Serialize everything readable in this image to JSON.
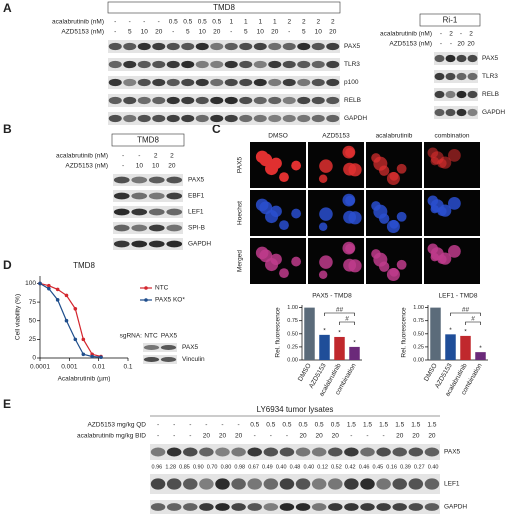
{
  "panel_a": {
    "label": "A",
    "tmd8": {
      "title": "TMD8",
      "rows": [
        {
          "label": "acalabrutinib (nM)",
          "values": [
            "-",
            "-",
            "-",
            "-",
            "0.5",
            "0.5",
            "0.5",
            "0.5",
            "1",
            "1",
            "1",
            "1",
            "2",
            "2",
            "2",
            "2"
          ]
        },
        {
          "label": "AZD5153 (nM)",
          "values": [
            "-",
            "5",
            "10",
            "20",
            "-",
            "5",
            "10",
            "20",
            "-",
            "5",
            "10",
            "20",
            "-",
            "5",
            "10",
            "20"
          ]
        }
      ],
      "proteins": [
        "PAX5",
        "TLR3",
        "p100",
        "RELB",
        "GAPDH"
      ]
    },
    "ri1": {
      "title": "Ri-1",
      "rows": [
        {
          "label": "acalabrutinib (nM)",
          "values": [
            "-",
            "2",
            "-",
            "2"
          ]
        },
        {
          "label": "AZD5153 (nM)",
          "values": [
            "-",
            "-",
            "20",
            "20"
          ]
        }
      ],
      "proteins": [
        "PAX5",
        "TLR3",
        "RELB",
        "GAPDH"
      ]
    }
  },
  "panel_b": {
    "label": "B",
    "title": "TMD8",
    "rows": [
      {
        "label": "acalabrutinib (nM)",
        "values": [
          "-",
          "-",
          "2",
          "2"
        ]
      },
      {
        "label": "AZD5153 (nM)",
        "values": [
          "-",
          "10",
          "10",
          "20"
        ]
      }
    ],
    "proteins": [
      "PAX5",
      "EBF1",
      "LEF1",
      "SPI-B",
      "GAPDH"
    ]
  },
  "panel_c": {
    "label": "C",
    "columns": [
      "DMSO",
      "AZD5153",
      "acalabrutinib",
      "combination"
    ],
    "rows": [
      "PAX5",
      "Hoechst",
      "Merged"
    ]
  },
  "panel_d": {
    "label": "D",
    "inset": {
      "prefix": "sgRNA:",
      "lanes": [
        "NTC",
        "PAX5"
      ],
      "proteins": [
        "PAX5",
        "Vinculin"
      ]
    }
  },
  "panel_e": {
    "label": "E",
    "title": "LY6934 tumor lysates",
    "rows": [
      {
        "label": "AZD5153 mg/kg QD",
        "values": [
          "-",
          "-",
          "-",
          "-",
          "-",
          "-",
          "0.5",
          "0.5",
          "0.5",
          "0.5",
          "0.5",
          "0.5",
          "1.5",
          "1.5",
          "1.5",
          "1.5",
          "1.5",
          "1.5"
        ]
      },
      {
        "label": "acalabrutinib mg/kg BID",
        "values": [
          "-",
          "-",
          "-",
          "20",
          "20",
          "20",
          "-",
          "-",
          "-",
          "20",
          "20",
          "20",
          "-",
          "-",
          "-",
          "20",
          "20",
          "20"
        ]
      }
    ],
    "quantification": [
      "0.96",
      "1.28",
      "0.85",
      "0.90",
      "0.70",
      "0.80",
      "0.98",
      "0.67",
      "0.49",
      "0.40",
      "0.48",
      "0.40",
      "0.12",
      "0.52",
      "0.42",
      "0.46",
      "0.45",
      "0.16",
      "0.39",
      "0.27",
      "0.40"
    ],
    "proteins": [
      "PAX5",
      "LEF1",
      "GAPDH"
    ]
  },
  "chart_data": [
    {
      "type": "line",
      "title": "TMD8",
      "xlabel": "Acalabrutinib (µm)",
      "ylabel": "Cell viability (%)",
      "log_x": true,
      "x": [
        0.0001,
        0.0002,
        0.0004,
        0.0008,
        0.0016,
        0.003,
        0.006,
        0.012
      ],
      "series": [
        {
          "name": "NTC",
          "color": "#d3262e",
          "values": [
            100,
            97,
            92,
            84,
            66,
            25,
            5,
            2
          ]
        },
        {
          "name": "PAX5 KO*",
          "color": "#1f4e8c",
          "values": [
            100,
            93,
            78,
            50,
            25,
            5,
            2,
            1
          ]
        }
      ],
      "xlim": [
        0.0001,
        0.1
      ],
      "xticks": [
        0.0001,
        0.001,
        0.01,
        0.1
      ],
      "ylim": [
        0,
        110
      ],
      "yticks": [
        0,
        25,
        50,
        75,
        100
      ],
      "legend": "upper right"
    },
    {
      "type": "bar",
      "title": "PAX5 - TMD8",
      "ylabel": "Rel. fluorescence",
      "categories": [
        "DMSO",
        "AZD5153",
        "acalabrutinib",
        "combination"
      ],
      "values": [
        1.0,
        0.48,
        0.44,
        0.25
      ],
      "colors": [
        "#5b6b7a",
        "#1f4e99",
        "#c0282d",
        "#6b2a7a"
      ],
      "ylim": [
        0,
        1.05
      ],
      "yticks": [
        {
          "value": 0,
          "label": "0.00"
        },
        {
          "value": 0.25,
          "label": "0.25"
        },
        {
          "value": 0.5,
          "label": "0.50"
        },
        {
          "value": 0.75,
          "label": "0.75"
        },
        {
          "value": 1,
          "label": "1.00"
        }
      ],
      "annotations": [
        "*",
        "*",
        "*",
        "##",
        "#"
      ]
    },
    {
      "type": "bar",
      "title": "LEF1 - TMD8",
      "ylabel": "Rel. fluorescence",
      "categories": [
        "DMSO",
        "AZD5153",
        "acalabrutinib",
        "combination"
      ],
      "values": [
        1.0,
        0.49,
        0.46,
        0.15
      ],
      "colors": [
        "#5b6b7a",
        "#1f4e99",
        "#c0282d",
        "#6b2a7a"
      ],
      "ylim": [
        0,
        1.05
      ],
      "yticks": [
        {
          "value": 0,
          "label": "0.00"
        },
        {
          "value": 0.25,
          "label": "0.25"
        },
        {
          "value": 0.5,
          "label": "0.50"
        },
        {
          "value": 0.75,
          "label": "0.75"
        },
        {
          "value": 1,
          "label": "1.00"
        }
      ],
      "annotations": [
        "*",
        "*",
        "*",
        "##",
        "#"
      ]
    }
  ]
}
